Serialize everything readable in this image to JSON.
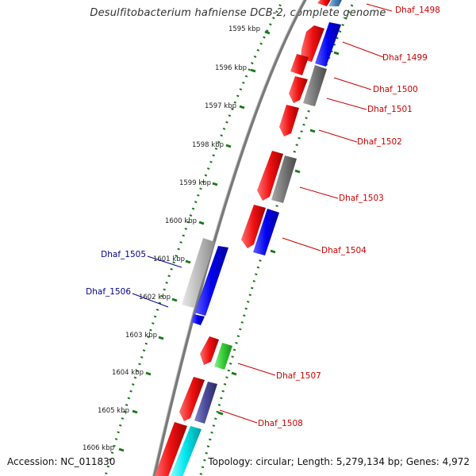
{
  "title": "Desulfitobacterium hafniense DCB-2, complete genome",
  "footer": {
    "accession": "Accession: NC_011830",
    "summary": "Topology: circular; Length: 5,279,134 bp; Genes: 4,972"
  },
  "colors": {
    "backbone": "#888888",
    "tick": "#1a7a1a",
    "label_red": "#cc0000",
    "label_blue": "#00008b",
    "gene_red": "#ee1111",
    "gene_blue": "#0000ee",
    "gene_gray": "#777777",
    "gene_lightgray": "#bbbbbb",
    "gene_green": "#33cc33",
    "gene_slate": "#4a4a9a",
    "gene_cyan": "#00e5ee",
    "gene_steel": "#4682b4"
  },
  "ticks": [
    "1595 kbp",
    "1596 kbp",
    "1597 kbp",
    "1598 kbp",
    "1599 kbp",
    "1600 kbp",
    "1601 kbp",
    "1602 kbp",
    "1603 kbp",
    "1604 kbp",
    "1605 kbp",
    "1606 kbp"
  ],
  "gene_labels": {
    "right": [
      "Dhaf_1498",
      "Dhaf_1499",
      "Dhaf_1500",
      "Dhaf_1501",
      "Dhaf_1502",
      "Dhaf_1503",
      "Dhaf_1504",
      "Dhaf_1507",
      "Dhaf_1508"
    ],
    "left": [
      "Dhaf_1505",
      "Dhaf_1506"
    ]
  }
}
